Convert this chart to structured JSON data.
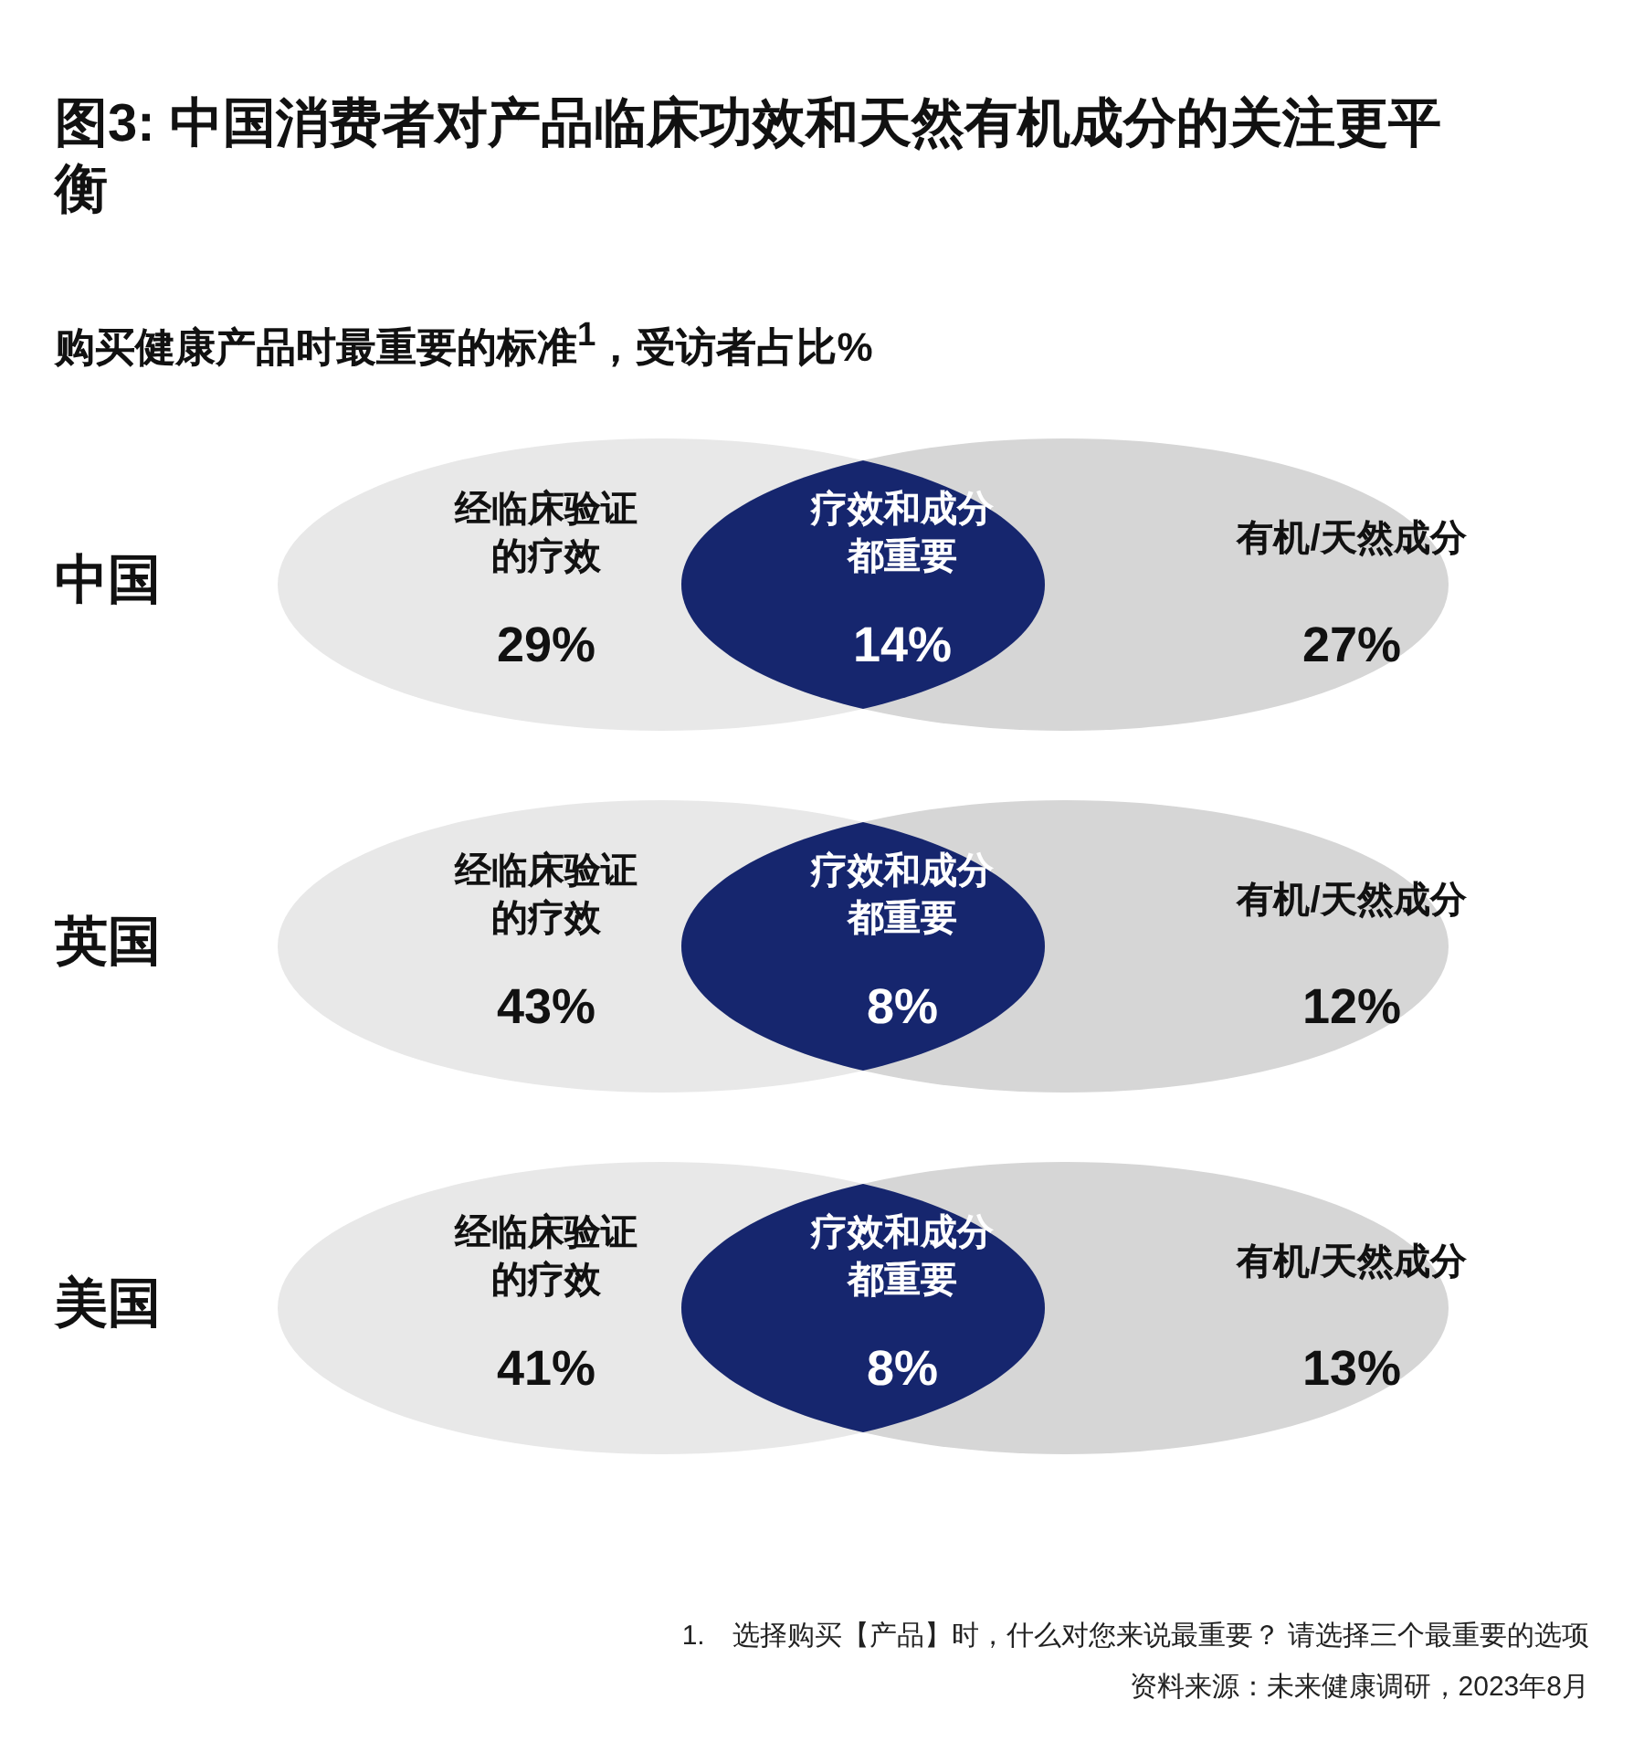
{
  "chart_data": {
    "type": "other",
    "title": "图3: 中国消费者对产品临床功效和天然有机成分的关注更平衡",
    "subtitle": "购买健康产品时最重要的标准$^{1}$，受访者占比%",
    "categories": [
      "中国",
      "英国",
      "美国"
    ],
    "series": [
      {
        "name": "经临床验证的疗效",
        "color": "#e8e8e8",
        "values": [
          29,
          43,
          41
        ],
        "value_labels": [
          "29%",
          "43%",
          "41%"
        ]
      },
      {
        "name": "疗效和成分都重要",
        "color": "#16266e",
        "values": [
          14,
          8,
          8
        ],
        "value_labels": [
          "14%",
          "8%",
          "8%"
        ]
      },
      {
        "name": "有机/天然成分",
        "color": "#d6d6d6",
        "values": [
          27,
          12,
          13
        ],
        "value_labels": [
          "27%",
          "12%",
          "13%"
        ]
      }
    ],
    "annotations": [
      "1.　选择购买【产品】时，什么对您来说最重要？ 请选择三个最重要的选项",
      "资料来源：未来健康调研，2023年8月"
    ]
  }
}
